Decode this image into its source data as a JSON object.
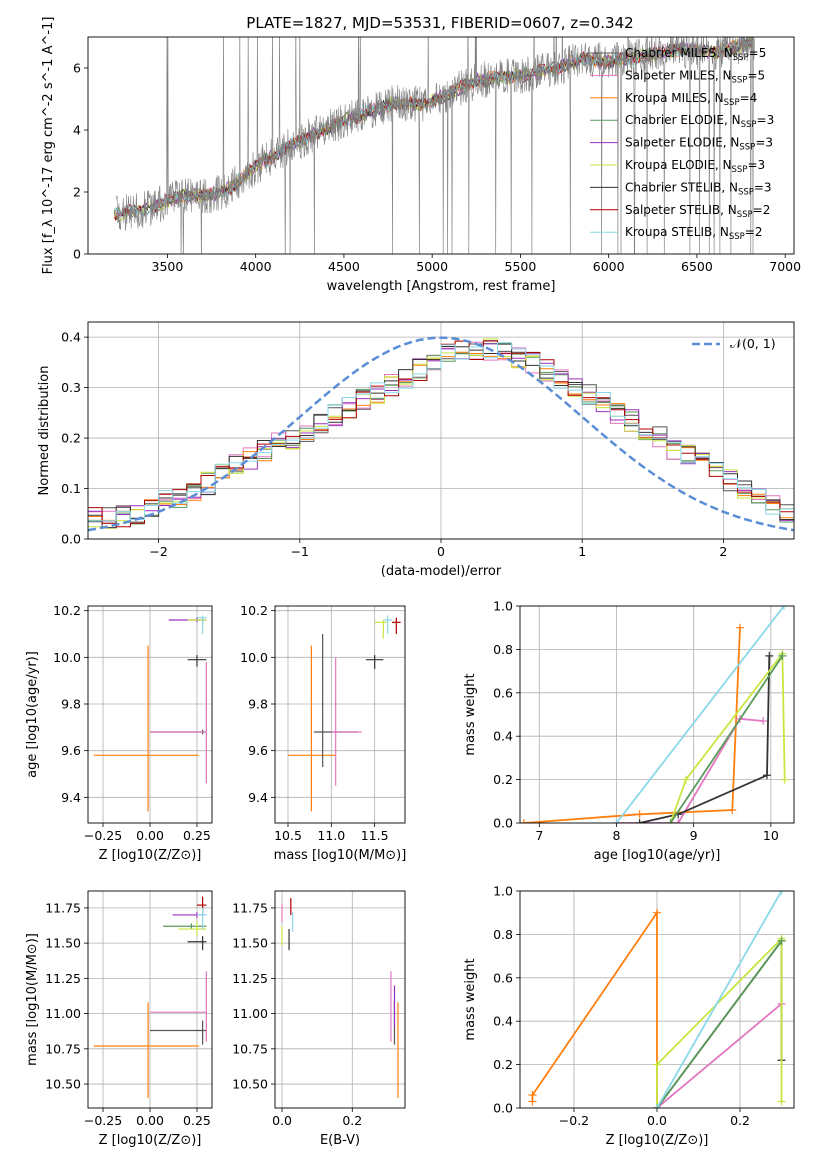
{
  "figure": {
    "title": "PLATE=1827, MJD=53531, FIBERID=0607, z=0.342"
  },
  "colors": {
    "Chabrier MILES": "#555555",
    "Salpeter MILES": "#e377c2",
    "Kroupa MILES": "#ff7f0e",
    "Chabrier ELODIE": "#5a9a5a",
    "Salpeter ELODIE": "#9b30c0",
    "Kroupa ELODIE": "#c8e640",
    "Chabrier STELIB": "#333333",
    "Salpeter STELIB": "#b00000",
    "Kroupa STELIB": "#8ad8e8",
    "gauss": "#5b8ed6",
    "spectrum": "#808080"
  },
  "chart_data": [
    {
      "id": "spectrum",
      "type": "line",
      "title": "PLATE=1827, MJD=53531, FIBERID=0607, z=0.342",
      "xlabel": "wavelength [Angstrom, rest frame]",
      "ylabel": "Flux [f_λ 10^-17 erg cm^-2 s^-1 A^-1]",
      "xlim": [
        3050,
        7050
      ],
      "ylim": [
        0,
        7
      ],
      "xticks": [
        3500,
        4000,
        4500,
        5000,
        5500,
        6000,
        6500,
        7000
      ],
      "yticks": [
        0,
        2,
        4,
        6
      ],
      "legend_position": "right",
      "legend": [
        {
          "label": "Chabrier MILES, N",
          "n": "=5"
        },
        {
          "label": "Salpeter MILES, N",
          "n": "=5"
        },
        {
          "label": "Kroupa MILES, N",
          "n": "=4"
        },
        {
          "label": "Chabrier ELODIE, N",
          "n": "=3"
        },
        {
          "label": "Salpeter ELODIE, N",
          "n": "=3"
        },
        {
          "label": "Kroupa ELODIE, N",
          "n": "=3"
        },
        {
          "label": "Chabrier STELIB, N",
          "n": "=3"
        },
        {
          "label": "Salpeter STELIB, N",
          "n": "=2"
        },
        {
          "label": "Kroupa STELIB, N",
          "n": "=2"
        }
      ],
      "legend_subscript": "SSP",
      "model_envelope": [
        [
          3200,
          1.3
        ],
        [
          3350,
          1.4
        ],
        [
          3450,
          1.6
        ],
        [
          3600,
          1.9
        ],
        [
          3750,
          1.9
        ],
        [
          3850,
          2.1
        ],
        [
          3950,
          2.6
        ],
        [
          4050,
          3.0
        ],
        [
          4200,
          3.5
        ],
        [
          4350,
          3.9
        ],
        [
          4500,
          4.3
        ],
        [
          4650,
          4.6
        ],
        [
          4800,
          4.9
        ],
        [
          4950,
          4.8
        ],
        [
          5100,
          5.2
        ],
        [
          5250,
          5.6
        ],
        [
          5400,
          5.7
        ],
        [
          5550,
          5.8
        ],
        [
          5700,
          6.0
        ],
        [
          5850,
          6.3
        ],
        [
          6000,
          6.2
        ],
        [
          6200,
          6.4
        ],
        [
          6400,
          6.6
        ],
        [
          6600,
          6.5
        ],
        [
          6800,
          6.8
        ]
      ],
      "grid": false
    },
    {
      "id": "residuals",
      "type": "histogram",
      "xlabel": "(data-model)/error",
      "ylabel": "Normed distribution",
      "xlim": [
        -2.5,
        2.5
      ],
      "ylim": [
        0,
        0.43
      ],
      "xticks": [
        -2,
        -1,
        0,
        1,
        2
      ],
      "yticks": [
        0.0,
        0.1,
        0.2,
        0.3,
        0.4
      ],
      "legend": [
        "𝒩(0, 1)"
      ],
      "legend_position": "top-right",
      "bin_edges_start": -2.5,
      "bin_width": 0.1,
      "heights": [
        0.04,
        0.04,
        0.045,
        0.05,
        0.065,
        0.075,
        0.085,
        0.095,
        0.11,
        0.13,
        0.145,
        0.16,
        0.175,
        0.19,
        0.2,
        0.215,
        0.23,
        0.245,
        0.26,
        0.275,
        0.29,
        0.305,
        0.32,
        0.335,
        0.35,
        0.365,
        0.37,
        0.375,
        0.375,
        0.37,
        0.36,
        0.35,
        0.335,
        0.32,
        0.3,
        0.285,
        0.27,
        0.25,
        0.235,
        0.215,
        0.2,
        0.18,
        0.165,
        0.15,
        0.13,
        0.115,
        0.1,
        0.085,
        0.07,
        0.055
      ],
      "grid": true
    },
    {
      "id": "age_vs_Z",
      "type": "errorbar",
      "xlabel": "Z [log10(Z/Z⊙)]",
      "ylabel": "age [log10(age/yr)]",
      "xlim": [
        -0.33,
        0.33
      ],
      "ylim": [
        9.29,
        10.22
      ],
      "xticks": [
        -0.25,
        0.0,
        0.25
      ],
      "yticks": [
        9.4,
        9.6,
        9.8,
        10.0,
        10.2
      ],
      "points": [
        {
          "s": "Kroupa MILES",
          "x": -0.01,
          "y": 9.58,
          "xl": -0.3,
          "xh": 0.26,
          "yl": 9.34,
          "yh": 10.05
        },
        {
          "s": "Chabrier MILES",
          "x": 0.28,
          "y": 9.68,
          "xl": 0.0,
          "xh": 0.3,
          "yl": 9.67,
          "yh": 9.69
        },
        {
          "s": "Salpeter MILES",
          "x": 0.3,
          "y": 9.68,
          "xl": 0.0,
          "xh": 0.3,
          "yl": 9.46,
          "yh": 9.98
        },
        {
          "s": "Chabrier STELIB",
          "x": 0.25,
          "y": 9.99,
          "xl": 0.2,
          "xh": 0.3,
          "yl": 9.96,
          "yh": 10.01
        },
        {
          "s": "Salpeter ELODIE",
          "x": 0.25,
          "y": 10.16,
          "xl": 0.1,
          "xh": 0.3,
          "yl": 10.15,
          "yh": 10.17
        },
        {
          "s": "Kroupa ELODIE",
          "x": 0.28,
          "y": 10.16,
          "xl": 0.2,
          "xh": 0.3,
          "yl": 10.12,
          "yh": 10.17
        },
        {
          "s": "Kroupa STELIB",
          "x": 0.28,
          "y": 10.17,
          "xl": 0.25,
          "xh": 0.3,
          "yl": 10.1,
          "yh": 10.18
        }
      ],
      "grid": true
    },
    {
      "id": "age_vs_mass",
      "type": "errorbar",
      "xlabel": "mass [log10(M/M⊙)]",
      "ylabel": "",
      "xlim": [
        10.35,
        11.85
      ],
      "ylim": [
        9.29,
        10.22
      ],
      "xticks": [
        10.5,
        11.0,
        11.5
      ],
      "yticks": [
        9.4,
        9.6,
        9.8,
        10.0,
        10.2
      ],
      "points": [
        {
          "s": "Kroupa MILES",
          "x": 10.77,
          "y": 9.58,
          "xl": 10.5,
          "xh": 11.05,
          "yl": 9.34,
          "yh": 10.05
        },
        {
          "s": "Chabrier MILES",
          "x": 10.9,
          "y": 9.68,
          "xl": 10.8,
          "xh": 11.3,
          "yl": 9.53,
          "yh": 10.1
        },
        {
          "s": "Salpeter MILES",
          "x": 11.05,
          "y": 9.68,
          "xl": 11.0,
          "xh": 11.35,
          "yl": 9.45,
          "yh": 10.0
        },
        {
          "s": "Chabrier STELIB",
          "x": 11.5,
          "y": 9.99,
          "xl": 11.4,
          "xh": 11.6,
          "yl": 9.95,
          "yh": 10.01
        },
        {
          "s": "Salpeter STELIB",
          "x": 11.75,
          "y": 10.15,
          "xl": 11.7,
          "xh": 11.8,
          "yl": 10.1,
          "yh": 10.17
        },
        {
          "s": "Kroupa ELODIE",
          "x": 11.6,
          "y": 10.15,
          "xl": 11.5,
          "xh": 11.65,
          "yl": 10.08,
          "yh": 10.16
        },
        {
          "s": "Kroupa STELIB",
          "x": 11.65,
          "y": 10.16,
          "xl": 11.6,
          "xh": 11.7,
          "yl": 10.1,
          "yh": 10.18
        }
      ],
      "grid": true
    },
    {
      "id": "mass_weight_vs_age",
      "type": "line",
      "xlabel": "age [log10(age/yr)]",
      "ylabel": "mass weight",
      "xlim": [
        6.75,
        10.3
      ],
      "ylim": [
        0,
        1
      ],
      "xticks": [
        7,
        8,
        9,
        10
      ],
      "yticks": [
        0.0,
        0.2,
        0.4,
        0.6,
        0.8,
        1.0
      ],
      "series": [
        {
          "s": "Kroupa MILES",
          "x": [
            6.8,
            8.3,
            9.5,
            9.6
          ],
          "y": [
            0.0,
            0.04,
            0.06,
            0.9
          ]
        },
        {
          "s": "Salpeter MILES",
          "x": [
            8.0,
            8.8,
            9.6,
            9.9
          ],
          "y": [
            0.0,
            0.0,
            0.48,
            0.47
          ]
        },
        {
          "s": "Chabrier STELIB",
          "x": [
            8.3,
            8.8,
            9.95,
            9.98
          ],
          "y": [
            0.0,
            0.04,
            0.22,
            0.77
          ]
        },
        {
          "s": "Kroupa ELODIE",
          "x": [
            8.7,
            8.9,
            10.15,
            10.18
          ],
          "y": [
            0.0,
            0.2,
            0.78,
            0.2
          ]
        },
        {
          "s": "Chabrier ELODIE",
          "x": [
            8.7,
            10.15
          ],
          "y": [
            0.0,
            0.77
          ]
        },
        {
          "s": "Kroupa STELIB",
          "x": [
            8.0,
            10.17
          ],
          "y": [
            0.0,
            1.0
          ]
        }
      ],
      "grid": true
    },
    {
      "id": "mass_vs_Z",
      "type": "errorbar",
      "xlabel": "Z [log10(Z/Z⊙)]",
      "ylabel": "mass [log10(M/M⊙)]",
      "xlim": [
        -0.33,
        0.33
      ],
      "ylim": [
        10.33,
        11.87
      ],
      "xticks": [
        -0.25,
        0.0,
        0.25
      ],
      "yticks": [
        10.5,
        10.75,
        11.0,
        11.25,
        11.5,
        11.75
      ],
      "points": [
        {
          "s": "Kroupa MILES",
          "x": -0.01,
          "y": 10.77,
          "xl": -0.3,
          "xh": 0.26,
          "yl": 10.4,
          "yh": 11.08
        },
        {
          "s": "Chabrier MILES",
          "x": 0.28,
          "y": 10.88,
          "xl": 0.0,
          "xh": 0.3,
          "yl": 10.78,
          "yh": 10.95
        },
        {
          "s": "Salpeter MILES",
          "x": 0.3,
          "y": 11.01,
          "xl": 0.0,
          "xh": 0.3,
          "yl": 10.8,
          "yh": 11.3
        },
        {
          "s": "Chabrier STELIB",
          "x": 0.28,
          "y": 11.51,
          "xl": 0.2,
          "xh": 0.3,
          "yl": 11.45,
          "yh": 11.55
        },
        {
          "s": "Salpeter ELODIE",
          "x": 0.25,
          "y": 11.7,
          "xl": 0.12,
          "xh": 0.3,
          "yl": 11.68,
          "yh": 11.72
        },
        {
          "s": "Chabrier ELODIE",
          "x": 0.22,
          "y": 11.62,
          "xl": 0.07,
          "xh": 0.3,
          "yl": 11.6,
          "yh": 11.64
        },
        {
          "s": "Kroupa ELODIE",
          "x": 0.25,
          "y": 11.6,
          "xl": 0.15,
          "xh": 0.3,
          "yl": 11.55,
          "yh": 11.65
        },
        {
          "s": "Salpeter STELIB",
          "x": 0.28,
          "y": 11.77,
          "xl": 0.25,
          "xh": 0.3,
          "yl": 11.7,
          "yh": 11.83
        },
        {
          "s": "Kroupa STELIB",
          "x": 0.28,
          "y": 11.7,
          "xl": 0.25,
          "xh": 0.3,
          "yl": 11.6,
          "yh": 11.75
        }
      ],
      "grid": true
    },
    {
      "id": "mass_vs_ebv",
      "type": "errorbar",
      "xlabel": "E(B-V)",
      "ylabel": "",
      "xlim": [
        -0.02,
        0.35
      ],
      "ylim": [
        10.33,
        11.87
      ],
      "xticks": [
        0.0,
        0.2
      ],
      "yticks": [
        10.5,
        10.75,
        11.0,
        11.25,
        11.5,
        11.75
      ],
      "points": [
        {
          "s": "Kroupa MILES",
          "x": 0.33,
          "y": 10.77,
          "yl": 10.4,
          "yh": 11.08
        },
        {
          "s": "Chabrier MILES",
          "x": 0.32,
          "y": 10.88,
          "yl": 10.78,
          "yh": 11.1
        },
        {
          "s": "Salpeter MILES",
          "x": 0.31,
          "y": 11.01,
          "yl": 10.8,
          "yh": 11.3
        },
        {
          "s": "Salpeter ELODIE",
          "x": 0.32,
          "y": 11.0,
          "yl": 10.9,
          "yh": 11.2
        },
        {
          "s": "Chabrier STELIB",
          "x": 0.02,
          "y": 11.51,
          "yl": 11.45,
          "yh": 11.6
        },
        {
          "s": "Salpeter STELIB",
          "x": 0.025,
          "y": 11.75,
          "yl": 11.7,
          "yh": 11.82
        },
        {
          "s": "Kroupa ELODIE",
          "x": 0.0,
          "y": 11.55,
          "yl": 11.48,
          "yh": 11.62
        },
        {
          "s": "Kroupa STELIB",
          "x": 0.03,
          "y": 11.65,
          "yl": 11.58,
          "yh": 11.72
        },
        {
          "s": "Salpeter MILES",
          "x": 0.0,
          "y": 11.7,
          "yl": 11.65,
          "yh": 11.78
        }
      ],
      "grid": true
    },
    {
      "id": "mass_weight_vs_Z",
      "type": "line",
      "xlabel": "Z [log10(Z/Z⊙)]",
      "ylabel": "mass weight",
      "xlim": [
        -0.33,
        0.33
      ],
      "ylim": [
        0,
        1
      ],
      "xticks": [
        -0.2,
        0.0,
        0.2
      ],
      "yticks": [
        0.0,
        0.2,
        0.4,
        0.6,
        0.8,
        1.0
      ],
      "series": [
        {
          "s": "Kroupa MILES",
          "x": [
            -0.3,
            -0.3,
            0.0,
            0.0
          ],
          "y": [
            0.03,
            0.06,
            0.9,
            0.0
          ]
        },
        {
          "s": "Salpeter MILES",
          "x": [
            0.0,
            0.3
          ],
          "y": [
            0.0,
            0.48
          ]
        },
        {
          "s": "Chabrier STELIB",
          "x": [
            0.0,
            0.3,
            0.3
          ],
          "y": [
            0.0,
            0.77,
            0.22
          ]
        },
        {
          "s": "Kroupa ELODIE",
          "x": [
            0.0,
            0.0,
            0.3,
            0.3
          ],
          "y": [
            0.0,
            0.2,
            0.78,
            0.03
          ]
        },
        {
          "s": "Chabrier ELODIE",
          "x": [
            0.0,
            0.3
          ],
          "y": [
            0.0,
            0.77
          ]
        },
        {
          "s": "Kroupa STELIB",
          "x": [
            0.0,
            0.3
          ],
          "y": [
            0.0,
            1.0
          ]
        }
      ],
      "grid": true
    }
  ]
}
